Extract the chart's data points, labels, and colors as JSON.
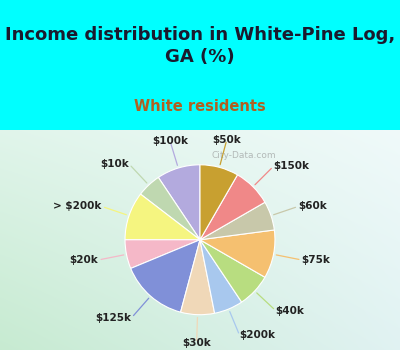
{
  "title": "Income distribution in White-Pine Log,\nGA (%)",
  "subtitle": "White residents",
  "labels": [
    "$100k",
    "$10k",
    "> $200k",
    "$20k",
    "$125k",
    "$30k",
    "$200k",
    "$40k",
    "$75k",
    "$60k",
    "$150k",
    "$50k"
  ],
  "values": [
    9,
    5,
    10,
    6,
    14,
    7,
    6,
    7,
    10,
    6,
    8,
    8
  ],
  "colors": [
    "#b3aade",
    "#bfd8b0",
    "#f5f580",
    "#f5b8c8",
    "#8090d8",
    "#f0d8b8",
    "#a8c8ee",
    "#b8dd80",
    "#f5c070",
    "#c8c8aa",
    "#f08888",
    "#c8a030"
  ],
  "background_top": "#00ffff",
  "label_fontsize": 7.5,
  "title_fontsize": 13,
  "subtitle_fontsize": 10.5,
  "subtitle_color": "#b06020",
  "wedge_linewidth": 0.8,
  "wedge_linecolor": "#ffffff",
  "startangle": 90,
  "watermark": "City-Data.com"
}
